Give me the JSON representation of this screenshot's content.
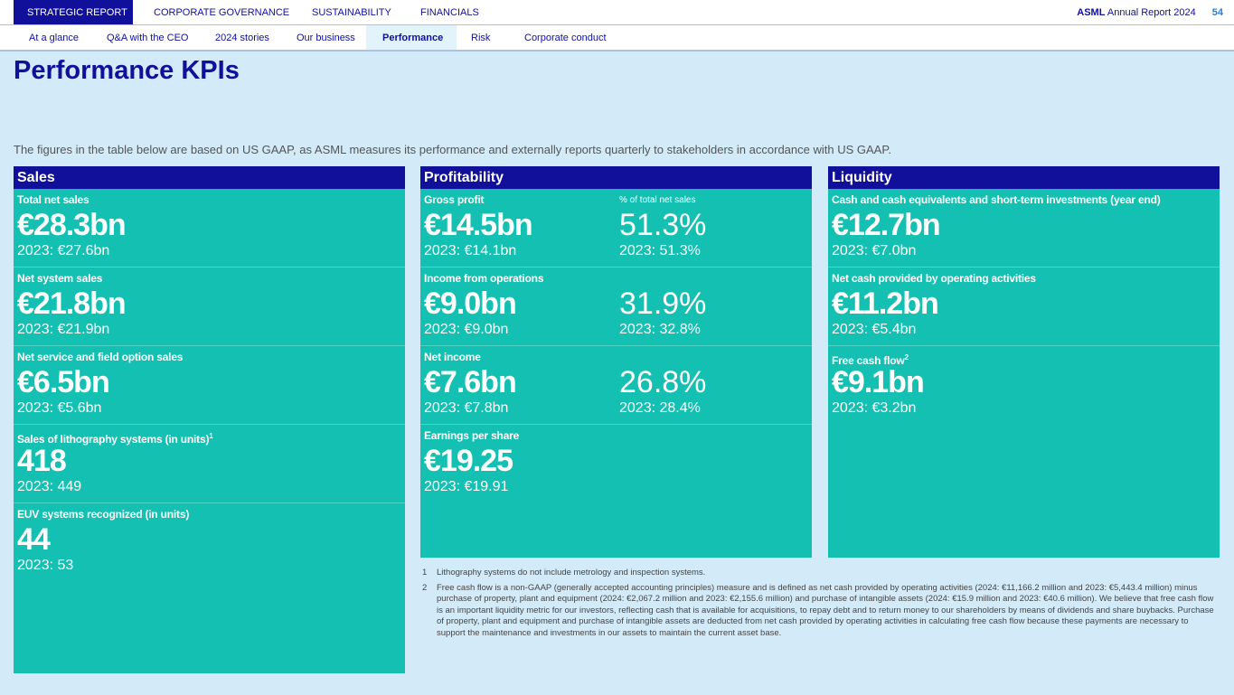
{
  "topnav": {
    "tabs": [
      "STRATEGIC REPORT",
      "CORPORATE GOVERNANCE",
      "SUSTAINABILITY",
      "FINANCIALS"
    ],
    "brand": "ASML",
    "report": "Annual Report 2024",
    "page": "54"
  },
  "subnav": {
    "tabs": [
      "At a glance",
      "Q&A with the CEO",
      "2024 stories",
      "Our business",
      "Performance",
      "Risk",
      "Corporate conduct"
    ]
  },
  "title": "Performance KPIs",
  "intro": "The figures in the table below are based on US GAAP, as ASML measures its performance and externally reports quarterly to stakeholders in accordance with US GAAP.",
  "sales": {
    "header": "Sales",
    "rows": [
      {
        "label": "Total net sales",
        "value": "€28.3bn",
        "prev": "2023: €27.6bn"
      },
      {
        "label": "Net system sales",
        "value": "€21.8bn",
        "prev": "2023: €21.9bn"
      },
      {
        "label": "Net service and field option sales",
        "value": "€6.5bn",
        "prev": "2023: €5.6bn"
      },
      {
        "label": "Sales of lithography systems (in units)",
        "sup": "1",
        "value": "418",
        "prev": "2023: 449"
      },
      {
        "label": "EUV systems recognized (in units)",
        "value": "44",
        "prev": "2023: 53"
      }
    ]
  },
  "profitability": {
    "header": "Profitability",
    "pct_label": "% of total net sales",
    "rows": [
      {
        "label": "Gross profit",
        "value": "€14.5bn",
        "prev": "2023: €14.1bn",
        "pct": "51.3%",
        "pct_prev": "2023: 51.3%"
      },
      {
        "label": "Income from operations",
        "value": "€9.0bn",
        "prev": "2023: €9.0bn",
        "pct": "31.9%",
        "pct_prev": "2023: 32.8%"
      },
      {
        "label": "Net income",
        "value": "€7.6bn",
        "prev": "2023: €7.8bn",
        "pct": "26.8%",
        "pct_prev": "2023: 28.4%"
      },
      {
        "label": "Earnings per share",
        "value": "€19.25",
        "prev": "2023: €19.91"
      }
    ]
  },
  "liquidity": {
    "header": "Liquidity",
    "rows": [
      {
        "label": "Cash and cash equivalents and short-term investments (year end)",
        "value": "€12.7bn",
        "prev": "2023: €7.0bn"
      },
      {
        "label": "Net cash provided by operating activities",
        "value": "€11.2bn",
        "prev": "2023: €5.4bn"
      },
      {
        "label": "Free cash flow",
        "sup": "2",
        "value": "€9.1bn",
        "prev": "2023: €3.2bn"
      }
    ]
  },
  "notes": [
    {
      "n": "1",
      "text": "Lithography systems do not include metrology and inspection systems."
    },
    {
      "n": "2",
      "text": "Free cash flow is a non-GAAP (generally accepted accounting principles) measure and is defined as net cash provided by operating activities (2024: €11,166.2 million and 2023: €5,443.4 million) minus purchase of property, plant and equipment (2024: €2,067.2 million and 2023: €2,155.6 million) and purchase of intangible assets (2024: €15.9 million and 2023: €40.6 million). We believe that free cash flow is an important liquidity metric for our investors, reflecting cash that is available for acquisitions, to repay debt and to return money to our shareholders by means of dividends and share buybacks. Purchase of property, plant and equipment and purchase of intangible assets are deducted from net cash provided by operating activities in calculating free cash flow because these payments are necessary to support the maintenance and investments in our assets to maintain the current asset base."
    }
  ]
}
